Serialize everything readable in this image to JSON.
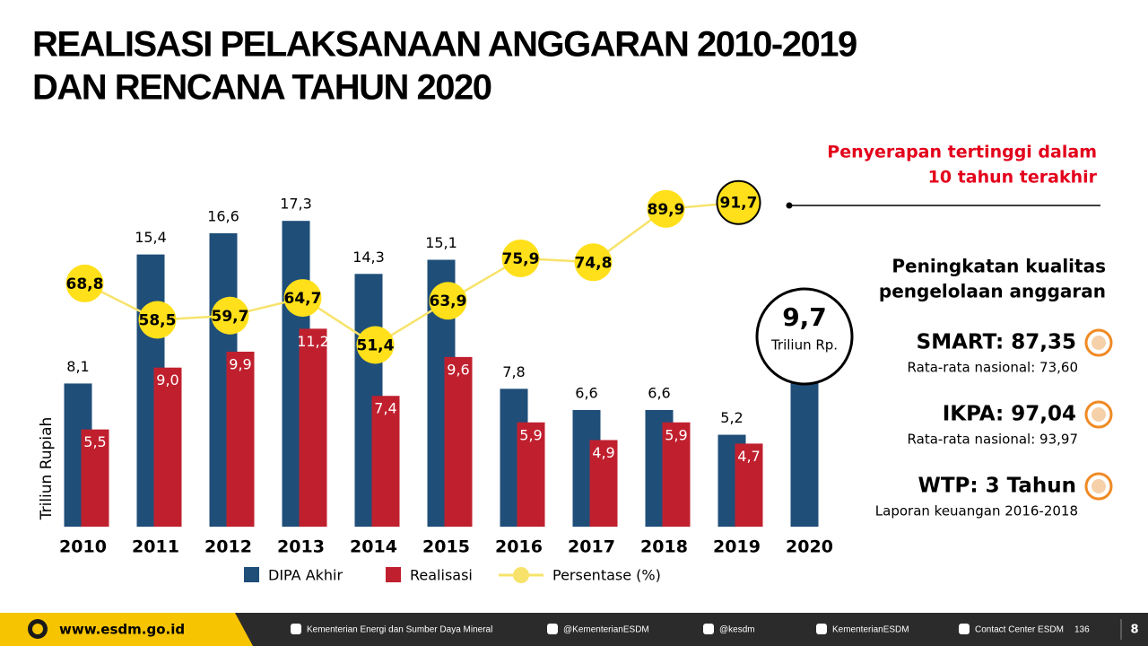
{
  "chart_data": {
    "type": "bar",
    "title": [
      "REALISASI PELAKSANAAN ANGGARAN 2010-2019",
      "DAN RENCANA TAHUN 2020"
    ],
    "ylabel": "Triliun Rupiah",
    "categories": [
      "2010",
      "2011",
      "2012",
      "2013",
      "2014",
      "2015",
      "2016",
      "2017",
      "2018",
      "2019",
      "2020"
    ],
    "series": [
      {
        "name": "DIPA Akhir",
        "type": "bar",
        "color": "#1f4e79",
        "values": [
          8.1,
          15.4,
          16.6,
          17.3,
          14.3,
          15.1,
          7.8,
          6.6,
          6.6,
          5.2,
          9.7
        ],
        "value_labels": [
          "8,1",
          "15,4",
          "16,6",
          "17,3",
          "14,3",
          "15,1",
          "7,8",
          "6,6",
          "6,6",
          "5,2",
          "9,7"
        ]
      },
      {
        "name": "Realisasi",
        "type": "bar",
        "color": "#c0202e",
        "values": [
          5.5,
          9.0,
          9.9,
          11.2,
          7.4,
          9.6,
          5.9,
          4.9,
          5.9,
          4.7,
          null
        ],
        "value_labels": [
          "5,5",
          "9,0",
          "9,9",
          "11,2",
          "7,4",
          "9,6",
          "5,9",
          "4,9",
          "5,9",
          "4,7",
          null
        ]
      },
      {
        "name": "Persentase (%)",
        "type": "line",
        "axis": "y2",
        "color": "#f7e36b",
        "marker_color": "#ffe01a",
        "values": [
          68.8,
          58.5,
          59.7,
          64.7,
          51.4,
          63.9,
          75.9,
          74.8,
          89.9,
          91.7,
          null
        ],
        "value_labels": [
          "68,8",
          "58,5",
          "59,7",
          "64,7",
          "51,4",
          "63,9",
          "75,9",
          "74,8",
          "89,9",
          "91,7",
          null
        ]
      }
    ],
    "ylim": [
      0,
      20
    ],
    "y2lim": [
      0,
      100
    ],
    "grid": false,
    "legend": "bottom",
    "annotations": [
      {
        "lines": [
          "Penyerapan tertinggi dalam",
          "10 tahun terakhir"
        ],
        "color": "#e3001b"
      },
      {
        "text": "Triliun Rp."
      }
    ]
  },
  "side_panel": {
    "heading": [
      "Peningkatan kualitas",
      "pengelolaan anggaran"
    ],
    "items": [
      {
        "label": "SMART: 87,35",
        "note": "Rata-rata nasional: 73,60"
      },
      {
        "label": "IKPA: 97,04",
        "note": "Rata-rata nasional: 93,97"
      },
      {
        "label": "WTP: 3 Tahun",
        "note": "Laporan keuangan 2016-2018"
      }
    ]
  },
  "footer": {
    "website": "www.esdm.go.id",
    "links": [
      "Kementerian Energi dan Sumber Daya Mineral",
      "@KementerianESDM",
      "@kesdm",
      "KementerianESDM",
      "Contact Center ESDM",
      "136"
    ],
    "page": "8"
  }
}
